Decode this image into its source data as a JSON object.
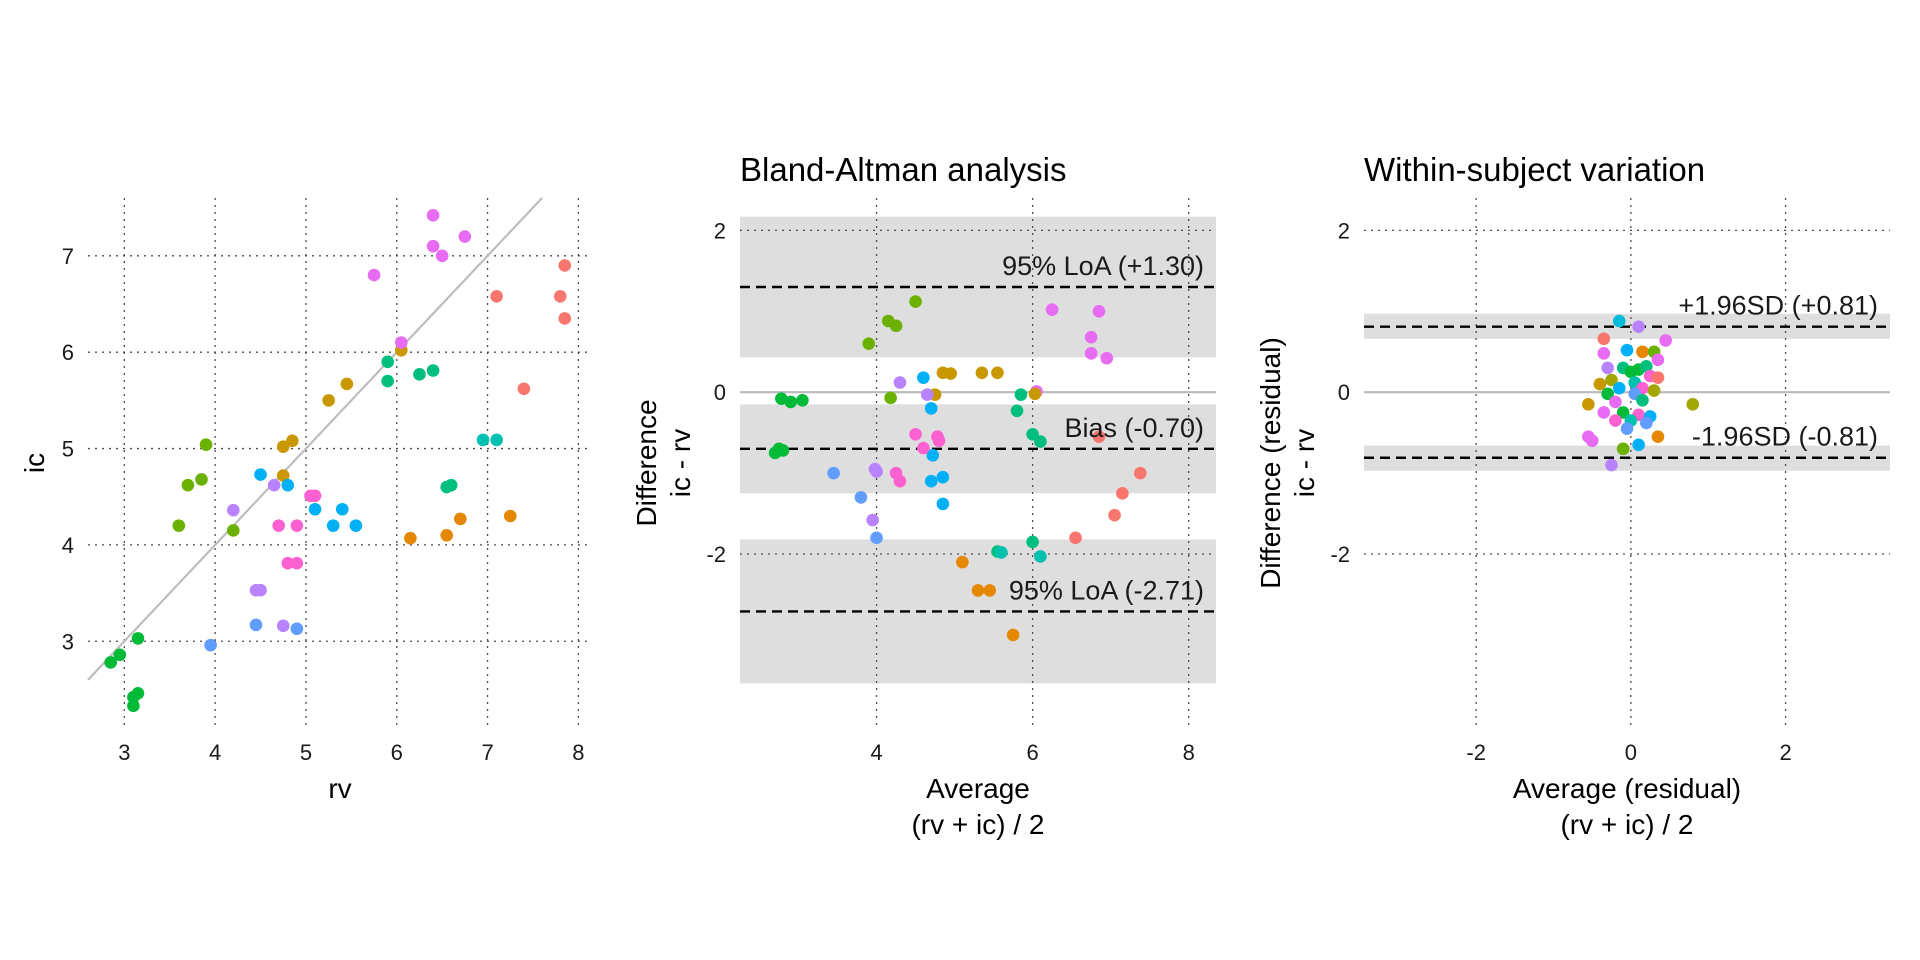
{
  "palette": [
    "#F8766D",
    "#E58700",
    "#C99800",
    "#A3A500",
    "#6BB100",
    "#00BA38",
    "#00BF7D",
    "#00C0AF",
    "#00BCD8",
    "#00B0F6",
    "#619CFF",
    "#B983FF",
    "#E76BF3",
    "#FD61D1"
  ],
  "chart_data": [
    {
      "type": "scatter",
      "title": "",
      "xlabel": "rv",
      "ylabel": "ic",
      "xlim": [
        2.6,
        8.15
      ],
      "ylim": [
        2.1,
        7.6
      ],
      "xticks": [
        3,
        4,
        5,
        6,
        7,
        8
      ],
      "xtick_labels": [
        "3",
        "4",
        "5",
        "6",
        "7",
        "8"
      ],
      "yticks": [
        3,
        4,
        5,
        6,
        7
      ],
      "ytick_labels": [
        "3",
        "4",
        "5",
        "6",
        "7"
      ],
      "grid": true,
      "reference_line": "identity",
      "points": [
        {
          "x": 7.1,
          "y": 6.58,
          "g": 0
        },
        {
          "x": 7.4,
          "y": 5.62,
          "g": 0
        },
        {
          "x": 7.8,
          "y": 6.58,
          "g": 0
        },
        {
          "x": 7.85,
          "y": 6.9,
          "g": 0
        },
        {
          "x": 7.85,
          "y": 6.35,
          "g": 0
        },
        {
          "x": 6.15,
          "y": 4.07,
          "g": 1
        },
        {
          "x": 6.55,
          "y": 4.1,
          "g": 1
        },
        {
          "x": 6.7,
          "y": 4.27,
          "g": 1
        },
        {
          "x": 7.25,
          "y": 4.3,
          "g": 1
        },
        {
          "x": 4.75,
          "y": 5.02,
          "g": 2
        },
        {
          "x": 4.85,
          "y": 5.08,
          "g": 2
        },
        {
          "x": 5.25,
          "y": 5.5,
          "g": 2
        },
        {
          "x": 5.45,
          "y": 5.67,
          "g": 2
        },
        {
          "x": 6.05,
          "y": 6.02,
          "g": 2
        },
        {
          "x": 4.75,
          "y": 4.72,
          "g": 2
        },
        {
          "x": 3.6,
          "y": 4.2,
          "g": 4
        },
        {
          "x": 3.7,
          "y": 4.62,
          "g": 4
        },
        {
          "x": 3.85,
          "y": 4.68,
          "g": 4
        },
        {
          "x": 3.9,
          "y": 5.04,
          "g": 4
        },
        {
          "x": 4.2,
          "y": 4.15,
          "g": 4
        },
        {
          "x": 2.85,
          "y": 2.78,
          "g": 5
        },
        {
          "x": 2.95,
          "y": 2.86,
          "g": 5
        },
        {
          "x": 3.1,
          "y": 2.33,
          "g": 5
        },
        {
          "x": 3.1,
          "y": 2.42,
          "g": 5
        },
        {
          "x": 3.15,
          "y": 2.46,
          "g": 5
        },
        {
          "x": 3.15,
          "y": 3.03,
          "g": 5
        },
        {
          "x": 5.9,
          "y": 5.9,
          "g": 6
        },
        {
          "x": 5.9,
          "y": 5.7,
          "g": 6
        },
        {
          "x": 6.25,
          "y": 5.77,
          "g": 6
        },
        {
          "x": 6.4,
          "y": 5.81,
          "g": 6
        },
        {
          "x": 6.55,
          "y": 4.6,
          "g": 6
        },
        {
          "x": 6.6,
          "y": 4.62,
          "g": 6
        },
        {
          "x": 6.95,
          "y": 5.09,
          "g": 7
        },
        {
          "x": 7.1,
          "y": 5.09,
          "g": 7
        },
        {
          "x": 4.5,
          "y": 4.73,
          "g": 9
        },
        {
          "x": 4.8,
          "y": 4.62,
          "g": 9
        },
        {
          "x": 5.1,
          "y": 4.37,
          "g": 9
        },
        {
          "x": 5.3,
          "y": 4.2,
          "g": 9
        },
        {
          "x": 5.4,
          "y": 4.37,
          "g": 9
        },
        {
          "x": 5.55,
          "y": 4.2,
          "g": 9
        },
        {
          "x": 3.95,
          "y": 2.96,
          "g": 10
        },
        {
          "x": 4.45,
          "y": 3.17,
          "g": 10
        },
        {
          "x": 4.9,
          "y": 3.13,
          "g": 10
        },
        {
          "x": 4.2,
          "y": 4.36,
          "g": 11
        },
        {
          "x": 4.45,
          "y": 3.53,
          "g": 11
        },
        {
          "x": 4.5,
          "y": 3.53,
          "g": 11
        },
        {
          "x": 4.65,
          "y": 4.62,
          "g": 11
        },
        {
          "x": 4.75,
          "y": 3.16,
          "g": 11
        },
        {
          "x": 5.75,
          "y": 6.8,
          "g": 12
        },
        {
          "x": 6.05,
          "y": 6.1,
          "g": 12
        },
        {
          "x": 6.4,
          "y": 7.42,
          "g": 12
        },
        {
          "x": 6.4,
          "y": 7.1,
          "g": 12
        },
        {
          "x": 6.5,
          "y": 7.0,
          "g": 12
        },
        {
          "x": 6.75,
          "y": 7.2,
          "g": 12
        },
        {
          "x": 4.7,
          "y": 4.2,
          "g": 13
        },
        {
          "x": 4.8,
          "y": 3.81,
          "g": 13
        },
        {
          "x": 4.9,
          "y": 3.81,
          "g": 13
        },
        {
          "x": 4.9,
          "y": 4.2,
          "g": 13
        },
        {
          "x": 5.05,
          "y": 4.51,
          "g": 13
        },
        {
          "x": 5.1,
          "y": 4.51,
          "g": 13
        }
      ]
    },
    {
      "type": "scatter",
      "title": "Bland-Altman analysis",
      "xlabel": "Average\n(rv + ic) / 2",
      "ylabel": "Difference\nic - rv",
      "xlim": [
        2.25,
        8.35
      ],
      "ylim": [
        -4.15,
        2.4
      ],
      "xticks": [
        4,
        6,
        8
      ],
      "xtick_labels": [
        "4",
        "6",
        "8"
      ],
      "yticks": [
        -2,
        0,
        2
      ],
      "ytick_labels": [
        "-2",
        "0",
        "2"
      ],
      "grid": true,
      "zero_line": true,
      "lines": [
        {
          "y": 1.3,
          "label": "95% LoA (+1.30)",
          "band": [
            0.43,
            2.17
          ]
        },
        {
          "y": -0.7,
          "label": "Bias (-0.70)",
          "band": [
            -1.25,
            -0.15
          ]
        },
        {
          "y": -2.71,
          "label": "95% LoA (-2.71)",
          "band": [
            -3.6,
            -1.82
          ]
        }
      ],
      "points": [
        {
          "x": 6.85,
          "y": 1.0,
          "g": 12
        },
        {
          "x": 6.25,
          "y": 1.02,
          "g": 12
        },
        {
          "x": 6.75,
          "y": 0.68,
          "g": 12
        },
        {
          "x": 6.75,
          "y": 0.48,
          "g": 12
        },
        {
          "x": 6.95,
          "y": 0.42,
          "g": 12
        },
        {
          "x": 6.05,
          "y": 0.01,
          "g": 12
        },
        {
          "x": 3.9,
          "y": 0.6,
          "g": 4
        },
        {
          "x": 4.15,
          "y": 0.88,
          "g": 4
        },
        {
          "x": 4.25,
          "y": 0.82,
          "g": 4
        },
        {
          "x": 4.5,
          "y": 1.12,
          "g": 4
        },
        {
          "x": 4.18,
          "y": -0.07,
          "g": 4
        },
        {
          "x": 4.85,
          "y": 0.24,
          "g": 2
        },
        {
          "x": 4.95,
          "y": 0.23,
          "g": 2
        },
        {
          "x": 5.35,
          "y": 0.24,
          "g": 2
        },
        {
          "x": 5.55,
          "y": 0.24,
          "g": 2
        },
        {
          "x": 6.03,
          "y": -0.02,
          "g": 2
        },
        {
          "x": 4.75,
          "y": -0.03,
          "g": 2
        },
        {
          "x": 2.7,
          "y": -0.75,
          "g": 5
        },
        {
          "x": 2.8,
          "y": -0.72,
          "g": 5
        },
        {
          "x": 2.78,
          "y": -0.08,
          "g": 5
        },
        {
          "x": 2.9,
          "y": -0.12,
          "g": 5
        },
        {
          "x": 3.05,
          "y": -0.1,
          "g": 5
        },
        {
          "x": 2.75,
          "y": -0.7,
          "g": 5
        },
        {
          "x": 4.3,
          "y": 0.12,
          "g": 11
        },
        {
          "x": 4.65,
          "y": -0.03,
          "g": 11
        },
        {
          "x": 3.98,
          "y": -0.95,
          "g": 11
        },
        {
          "x": 4.0,
          "y": -0.98,
          "g": 11
        },
        {
          "x": 3.95,
          "y": -1.58,
          "g": 11
        },
        {
          "x": 4.6,
          "y": 0.18,
          "g": 9
        },
        {
          "x": 4.7,
          "y": -0.2,
          "g": 9
        },
        {
          "x": 4.7,
          "y": -1.1,
          "g": 9
        },
        {
          "x": 4.85,
          "y": -1.05,
          "g": 9
        },
        {
          "x": 4.85,
          "y": -1.38,
          "g": 9
        },
        {
          "x": 4.72,
          "y": -0.78,
          "g": 9
        },
        {
          "x": 5.85,
          "y": -0.03,
          "g": 6
        },
        {
          "x": 5.8,
          "y": -0.23,
          "g": 6
        },
        {
          "x": 6.0,
          "y": -0.52,
          "g": 6
        },
        {
          "x": 6.1,
          "y": -0.61,
          "g": 6
        },
        {
          "x": 5.55,
          "y": -1.97,
          "g": 6
        },
        {
          "x": 6.0,
          "y": -1.85,
          "g": 6
        },
        {
          "x": 5.6,
          "y": -1.98,
          "g": 7
        },
        {
          "x": 6.1,
          "y": -2.03,
          "g": 7
        },
        {
          "x": 4.5,
          "y": -0.52,
          "g": 13
        },
        {
          "x": 4.6,
          "y": -0.69,
          "g": 13
        },
        {
          "x": 4.78,
          "y": -0.55,
          "g": 13
        },
        {
          "x": 4.8,
          "y": -0.6,
          "g": 13
        },
        {
          "x": 4.25,
          "y": -1.0,
          "g": 13
        },
        {
          "x": 4.3,
          "y": -1.1,
          "g": 13
        },
        {
          "x": 3.45,
          "y": -1.0,
          "g": 10
        },
        {
          "x": 3.8,
          "y": -1.3,
          "g": 10
        },
        {
          "x": 4.0,
          "y": -1.8,
          "g": 10
        },
        {
          "x": 5.1,
          "y": -2.1,
          "g": 1
        },
        {
          "x": 5.3,
          "y": -2.45,
          "g": 1
        },
        {
          "x": 5.45,
          "y": -2.45,
          "g": 1
        },
        {
          "x": 5.75,
          "y": -3.0,
          "g": 1
        },
        {
          "x": 6.85,
          "y": -0.55,
          "g": 0
        },
        {
          "x": 7.38,
          "y": -1.0,
          "g": 0
        },
        {
          "x": 7.15,
          "y": -1.25,
          "g": 0
        },
        {
          "x": 7.05,
          "y": -1.52,
          "g": 0
        },
        {
          "x": 6.55,
          "y": -1.8,
          "g": 0
        }
      ]
    },
    {
      "type": "scatter",
      "title": "Within-subject variation",
      "xlabel": "Average (residual)\n(rv + ic) / 2",
      "ylabel": "Difference (residual)\nic - rv",
      "xlim": [
        -3.45,
        3.35
      ],
      "ylim": [
        -4.15,
        2.4
      ],
      "xticks": [
        -2,
        0,
        2
      ],
      "xtick_labels": [
        "-2",
        "0",
        "2"
      ],
      "yticks": [
        -2,
        0,
        2
      ],
      "ytick_labels": [
        "-2",
        "0",
        "2"
      ],
      "grid": true,
      "zero_line": true,
      "lines": [
        {
          "y": 0.81,
          "label": "+1.96SD (+0.81)",
          "band": [
            0.66,
            0.97
          ]
        },
        {
          "y": -0.81,
          "label": "-1.96SD (-0.81)",
          "band": [
            -0.97,
            -0.66
          ]
        }
      ],
      "points": [
        {
          "x": -0.15,
          "y": 0.88,
          "g": 8
        },
        {
          "x": 0.1,
          "y": 0.81,
          "g": 11
        },
        {
          "x": -0.35,
          "y": 0.66,
          "g": 0
        },
        {
          "x": 0.45,
          "y": 0.64,
          "g": 12
        },
        {
          "x": -0.35,
          "y": 0.48,
          "g": 12
        },
        {
          "x": -0.05,
          "y": 0.52,
          "g": 9
        },
        {
          "x": 0.15,
          "y": 0.5,
          "g": 1
        },
        {
          "x": 0.3,
          "y": 0.5,
          "g": 4
        },
        {
          "x": 0.35,
          "y": 0.4,
          "g": 12
        },
        {
          "x": -0.3,
          "y": 0.3,
          "g": 11
        },
        {
          "x": -0.1,
          "y": 0.3,
          "g": 6
        },
        {
          "x": 0.0,
          "y": 0.25,
          "g": 5
        },
        {
          "x": 0.1,
          "y": 0.28,
          "g": 5
        },
        {
          "x": 0.2,
          "y": 0.32,
          "g": 6
        },
        {
          "x": 0.25,
          "y": 0.2,
          "g": 13
        },
        {
          "x": -0.25,
          "y": 0.15,
          "g": 3
        },
        {
          "x": -0.4,
          "y": 0.1,
          "g": 2
        },
        {
          "x": 0.05,
          "y": 0.12,
          "g": 7
        },
        {
          "x": 0.35,
          "y": 0.18,
          "g": 0
        },
        {
          "x": -0.15,
          "y": 0.05,
          "g": 9
        },
        {
          "x": 0.15,
          "y": 0.05,
          "g": 13
        },
        {
          "x": -0.3,
          "y": -0.02,
          "g": 5
        },
        {
          "x": 0.05,
          "y": -0.02,
          "g": 10
        },
        {
          "x": 0.3,
          "y": 0.02,
          "g": 3
        },
        {
          "x": 0.8,
          "y": -0.15,
          "g": 3
        },
        {
          "x": -0.55,
          "y": -0.15,
          "g": 2
        },
        {
          "x": -0.2,
          "y": -0.12,
          "g": 12
        },
        {
          "x": 0.15,
          "y": -0.1,
          "g": 6
        },
        {
          "x": -0.35,
          "y": -0.25,
          "g": 12
        },
        {
          "x": -0.1,
          "y": -0.25,
          "g": 5
        },
        {
          "x": 0.1,
          "y": -0.28,
          "g": 13
        },
        {
          "x": 0.25,
          "y": -0.3,
          "g": 9
        },
        {
          "x": -0.2,
          "y": -0.35,
          "g": 13
        },
        {
          "x": 0.0,
          "y": -0.35,
          "g": 7
        },
        {
          "x": 0.2,
          "y": -0.38,
          "g": 10
        },
        {
          "x": -0.05,
          "y": -0.45,
          "g": 10
        },
        {
          "x": -0.55,
          "y": -0.55,
          "g": 12
        },
        {
          "x": -0.5,
          "y": -0.6,
          "g": 12
        },
        {
          "x": 0.35,
          "y": -0.55,
          "g": 1
        },
        {
          "x": 0.1,
          "y": -0.65,
          "g": 9
        },
        {
          "x": -0.1,
          "y": -0.7,
          "g": 4
        },
        {
          "x": -0.25,
          "y": -0.9,
          "g": 11
        }
      ]
    }
  ]
}
